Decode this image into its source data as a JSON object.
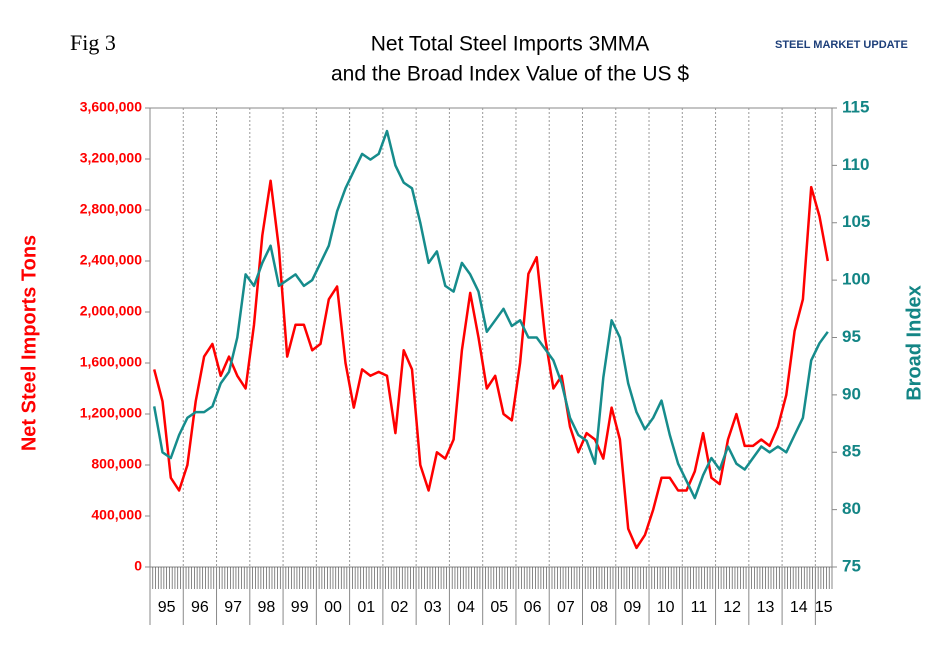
{
  "chart_data": {
    "type": "line",
    "fig_label": "Fig 3",
    "title": [
      "Net Total Steel Imports 3MMA",
      "and the Broad Index Value of the US $"
    ],
    "logo": "STEEL MARKET UPDATE",
    "y_label": "Net Steel Imports Tons",
    "y2_label": "Broad Index",
    "categories": [
      "95",
      null,
      null,
      null,
      "96",
      null,
      null,
      null,
      "97",
      null,
      null,
      null,
      "98",
      null,
      null,
      null,
      "99",
      null,
      null,
      null,
      "00",
      null,
      null,
      null,
      "01",
      null,
      null,
      null,
      "02",
      null,
      null,
      null,
      "03",
      null,
      null,
      null,
      "04",
      null,
      null,
      null,
      "05",
      null,
      null,
      null,
      "06",
      null,
      null,
      null,
      "07",
      null,
      null,
      null,
      "08",
      null,
      null,
      null,
      "09",
      null,
      null,
      null,
      "10",
      null,
      null,
      null,
      "11",
      null,
      null,
      null,
      "12",
      null,
      null,
      null,
      "13",
      null,
      null,
      null,
      "14",
      null,
      null,
      null,
      "15",
      null
    ],
    "series": [
      {
        "name": "Net Steel Imports Tons",
        "color": "#ff0000",
        "values": [
          1550000,
          1300000,
          700000,
          600000,
          800000,
          1300000,
          1650000,
          1750000,
          1500000,
          1650000,
          1500000,
          1400000,
          1900000,
          2600000,
          3030000,
          2500000,
          1650000,
          1900000,
          1900000,
          1700000,
          1750000,
          2100000,
          2200000,
          1600000,
          1250000,
          1550000,
          1500000,
          1530000,
          1500000,
          1050000,
          1700000,
          1550000,
          800000,
          600000,
          900000,
          850000,
          1000000,
          1700000,
          2150000,
          1800000,
          1400000,
          1500000,
          1200000,
          1150000,
          1600000,
          2300000,
          2430000,
          1800000,
          1400000,
          1500000,
          1100000,
          900000,
          1050000,
          1000000,
          850000,
          1250000,
          1000000,
          300000,
          150000,
          250000,
          450000,
          700000,
          700000,
          600000,
          600000,
          750000,
          1050000,
          700000,
          650000,
          1000000,
          1200000,
          950000,
          950000,
          1000000,
          950000,
          1100000,
          1350000,
          1850000,
          2100000,
          2980000,
          2750000,
          2400000
        ]
      },
      {
        "name": "Broad Index",
        "color": "#168c8c",
        "axis": "y2",
        "values": [
          89,
          85,
          84.5,
          86.5,
          88,
          88.5,
          88.5,
          89,
          91,
          92,
          95,
          100.5,
          99.5,
          101.5,
          103,
          99.5,
          100,
          100.5,
          99.5,
          100,
          101.5,
          103,
          106,
          108,
          109.5,
          111,
          110.5,
          111,
          113,
          110,
          108.5,
          108,
          105,
          101.5,
          102.5,
          99.5,
          99,
          101.5,
          100.5,
          99,
          95.5,
          96.5,
          97.5,
          96,
          96.5,
          95,
          95,
          94,
          93,
          91,
          88,
          86.5,
          86,
          84,
          91.5,
          96.5,
          95,
          91,
          88.5,
          87,
          88,
          89.5,
          86.5,
          84,
          82.5,
          81,
          83,
          84.5,
          83.5,
          85.5,
          84,
          83.5,
          84.5,
          85.5,
          85,
          85.5,
          85,
          86.5,
          88,
          93,
          94.5,
          95.5
        ]
      }
    ],
    "ylim": [
      0,
      3600000
    ],
    "yticks": [
      0,
      {
        "value": 400000,
        "label": "400,000"
      },
      {
        "value": 800000,
        "label": "800,000"
      },
      {
        "value": 1200000,
        "label": "1,200,000"
      },
      {
        "value": 1600000,
        "label": "1,600,000"
      },
      {
        "value": 2000000,
        "label": "2,000,000"
      },
      {
        "value": 2400000,
        "label": "2,400,000"
      },
      {
        "value": 2800000,
        "label": "2,800,000"
      },
      {
        "value": 3200000,
        "label": "3,200,000"
      },
      {
        "value": 3600000,
        "label": "3,600,000"
      }
    ],
    "y2lim": [
      75,
      115
    ],
    "y2ticks": [
      75,
      80,
      85,
      90,
      95,
      100,
      105,
      110,
      115
    ],
    "grid": true
  }
}
